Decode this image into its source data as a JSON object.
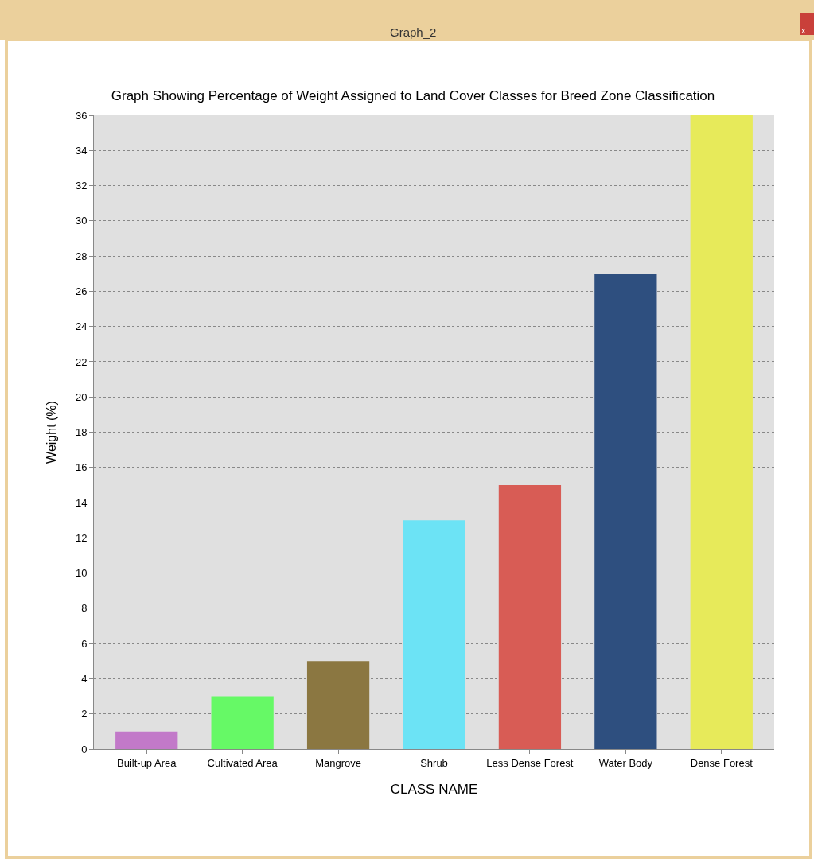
{
  "chart_data": {
    "type": "bar",
    "title": "Graph Showing Percentage of Weight Assigned to Land Cover Classes for Breed Zone Classification",
    "xlabel": "CLASS NAME",
    "ylabel": "Weight (%)",
    "annotations": [
      "Graph_2",
      "x"
    ],
    "categories": [
      "Built-up Area",
      "Cultivated Area",
      "Mangrove",
      "Shrub",
      "Less Dense Forest",
      "Water Body",
      "Dense Forest"
    ],
    "values": [
      1,
      3,
      5,
      13,
      15,
      27,
      36
    ],
    "colors": [
      "#c279c9",
      "#66f966",
      "#8b7741",
      "#6ce3f5",
      "#d85c55",
      "#2e4f7f",
      "#e7ea5a"
    ],
    "ylim": [
      0,
      36
    ],
    "yticks": [
      0,
      2,
      4,
      6,
      8,
      10,
      12,
      14,
      16,
      18,
      20,
      22,
      24,
      26,
      28,
      30,
      32,
      34,
      36
    ],
    "grid": "y"
  }
}
